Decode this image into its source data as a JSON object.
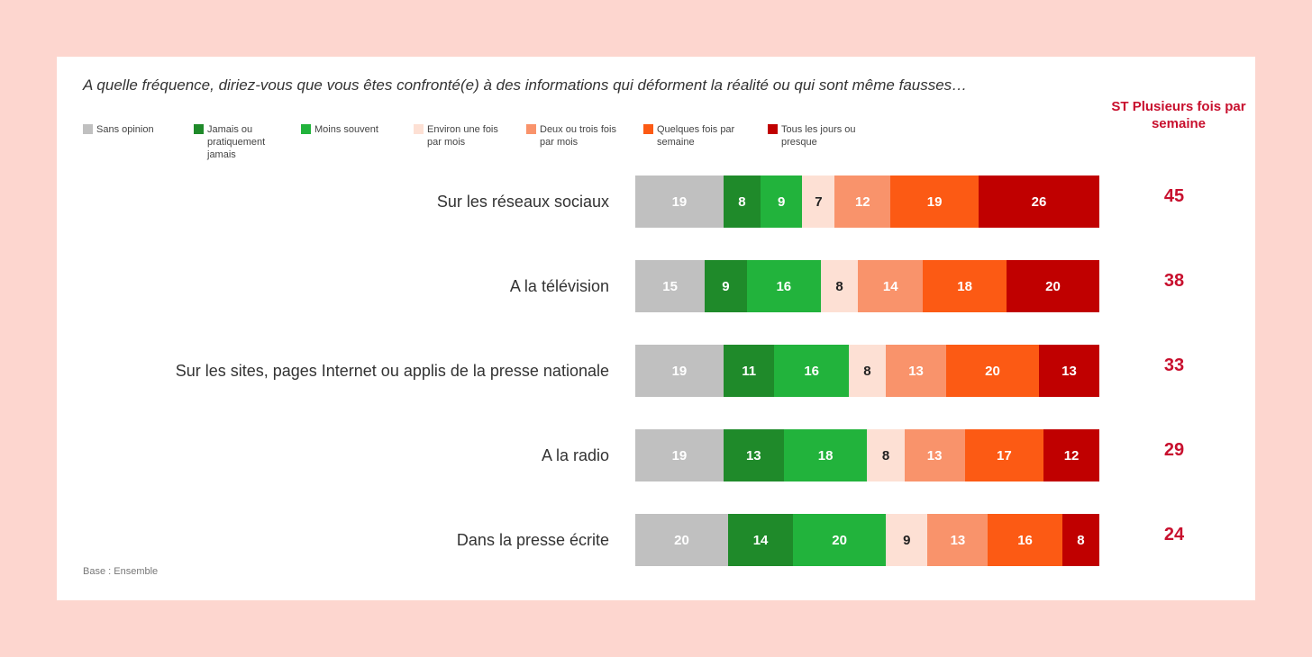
{
  "question": "A quelle fréquence, diriez-vous que vous êtes confronté(e) à des informations qui déforment la réalité ou qui sont même fausses…",
  "st_header": "ST Plusieurs fois par semaine",
  "base_note": "Base : Ensemble",
  "legend": [
    {
      "label": "Sans opinion",
      "color": "#c0c0c0"
    },
    {
      "label": "Jamais ou pratiquement jamais",
      "color": "#1f8a2a"
    },
    {
      "label": "Moins souvent",
      "color": "#22b33c"
    },
    {
      "label": "Environ une fois par mois",
      "color": "#fde0d4"
    },
    {
      "label": "Deux ou trois fois par mois",
      "color": "#f9936b"
    },
    {
      "label": "Quelques fois par semaine",
      "color": "#fc5a14"
    },
    {
      "label": "Tous les jours ou presque",
      "color": "#c00000"
    }
  ],
  "chart_data": {
    "type": "bar",
    "stacked": true,
    "orientation": "horizontal",
    "categories": [
      "Sur les réseaux sociaux",
      "A la télévision",
      "Sur les sites, pages Internet ou applis de la presse nationale",
      "A la radio",
      "Dans la presse écrite"
    ],
    "series": [
      {
        "name": "Sans opinion",
        "values": [
          19,
          15,
          19,
          19,
          20
        ]
      },
      {
        "name": "Jamais ou pratiquement jamais",
        "values": [
          8,
          9,
          11,
          13,
          14
        ]
      },
      {
        "name": "Moins souvent",
        "values": [
          9,
          16,
          16,
          18,
          20
        ]
      },
      {
        "name": "Environ une fois par mois",
        "values": [
          7,
          8,
          8,
          8,
          9
        ]
      },
      {
        "name": "Deux ou trois fois par mois",
        "values": [
          12,
          14,
          13,
          13,
          13
        ]
      },
      {
        "name": "Quelques fois par semaine",
        "values": [
          19,
          18,
          20,
          17,
          16
        ]
      },
      {
        "name": "Tous les jours ou presque",
        "values": [
          26,
          20,
          13,
          12,
          8
        ]
      }
    ],
    "st_plusieurs_fois_par_semaine": [
      45,
      38,
      33,
      29,
      24
    ]
  }
}
